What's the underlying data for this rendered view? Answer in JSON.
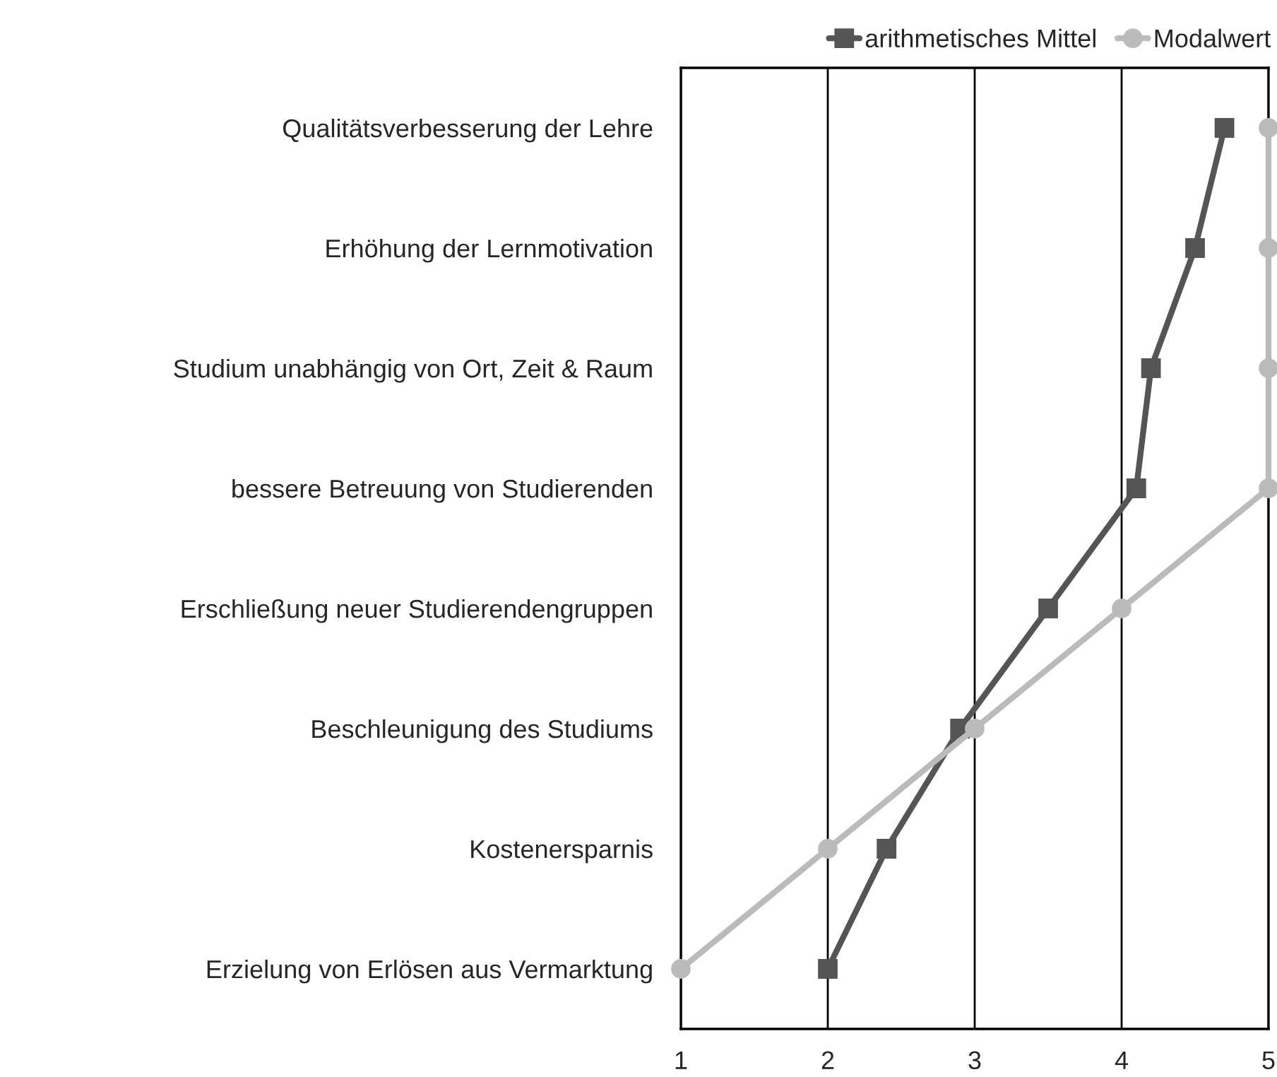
{
  "chart_data": {
    "type": "line",
    "orientation": "horizontal",
    "categories": [
      "Qualitätsverbesserung der Lehre",
      "Erhöhung der Lernmotivation",
      "Studium unabhängig von Ort, Zeit & Raum",
      "bessere Betreuung von Studierenden",
      "Erschließung neuer Studierendengruppen",
      "Beschleunigung des Studiums",
      "Kostenersparnis",
      "Erzielung von Erlösen aus Vermarktung"
    ],
    "series": [
      {
        "name": "arithmetisches Mittel",
        "color": "#555555",
        "marker": "square",
        "values": [
          4.7,
          4.5,
          4.2,
          4.1,
          3.5,
          2.9,
          2.4,
          2.0
        ]
      },
      {
        "name": "Modalwert",
        "color": "#bbbbbb",
        "marker": "circle",
        "values": [
          5,
          5,
          5,
          5,
          4,
          3,
          2,
          1
        ]
      }
    ],
    "xlim": [
      1,
      5
    ],
    "xticks": [
      1,
      2,
      3,
      4,
      5
    ],
    "grid": "x",
    "legend": "top right",
    "line_style": "solid"
  }
}
